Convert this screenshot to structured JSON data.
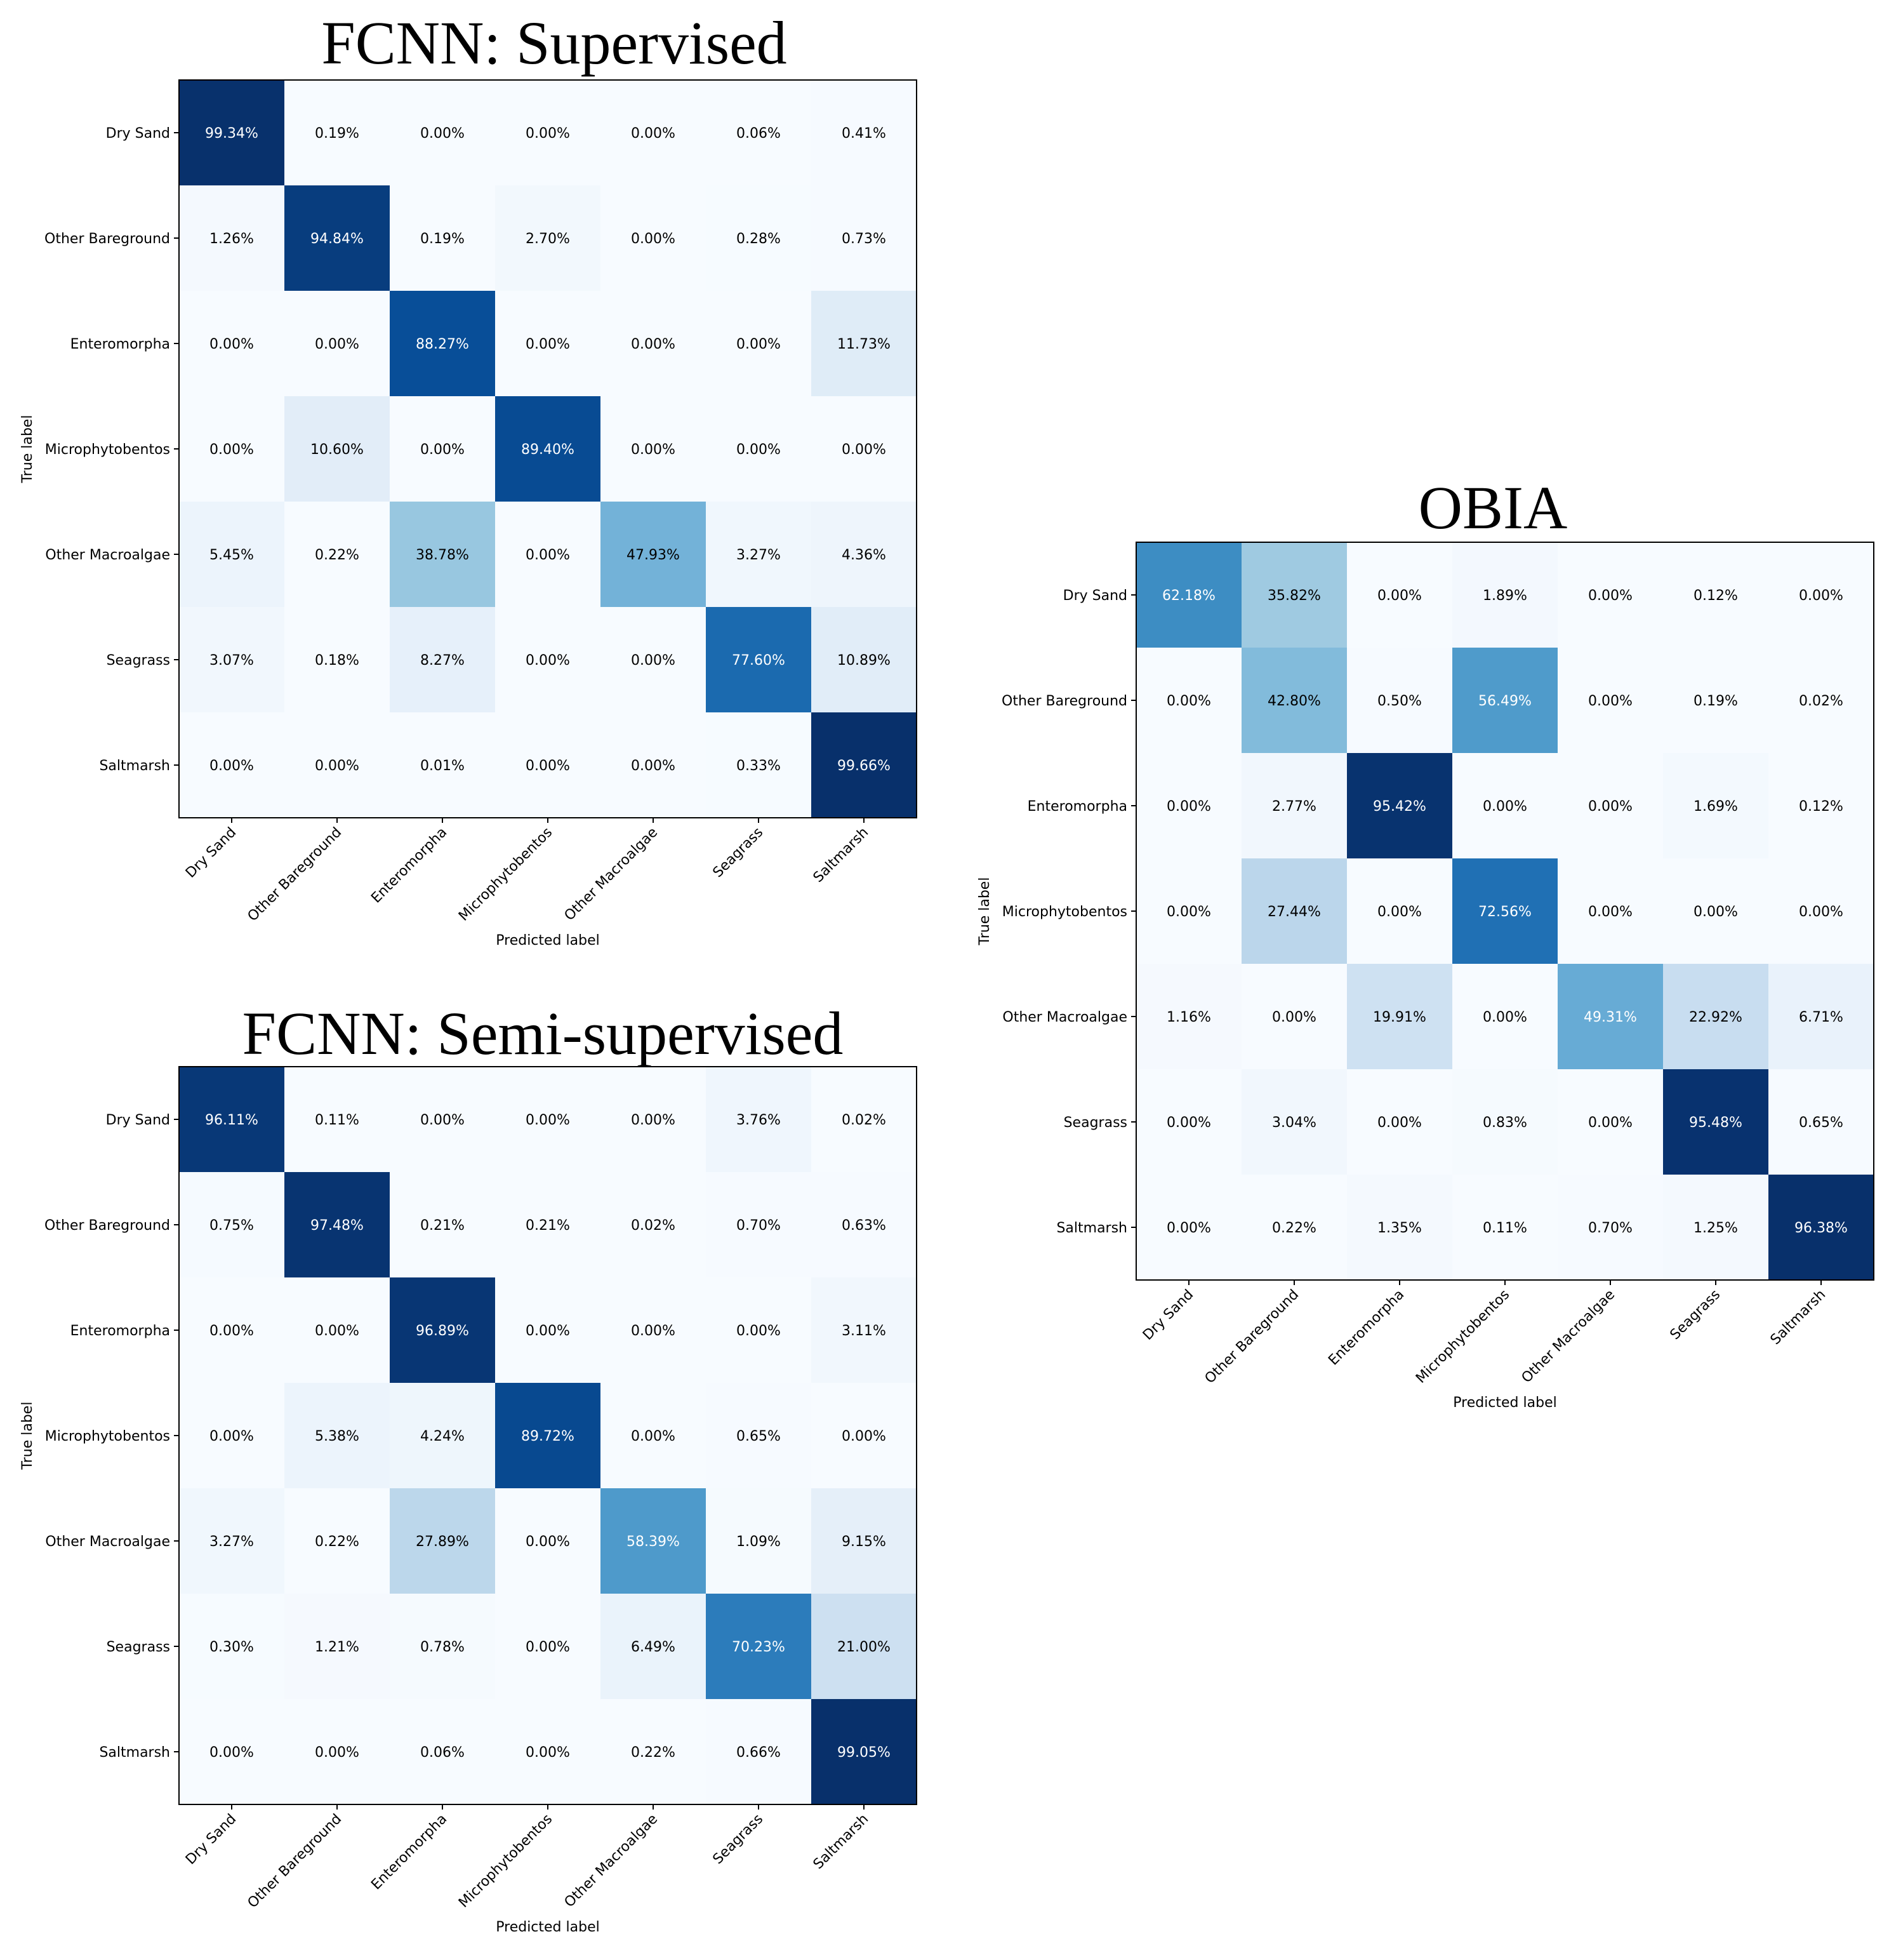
{
  "chart_data": [
    {
      "type": "heatmap",
      "title": "FCNN: Supervised",
      "xlabel": "Predicted label",
      "ylabel": "True label",
      "row_labels": [
        "Dry Sand",
        "Other Bareground",
        "Enteromorpha",
        "Microphytobentos",
        "Other Macroalgae",
        "Seagrass",
        "Saltmarsh"
      ],
      "col_labels": [
        "Dry Sand",
        "Other Bareground",
        "Enteromorpha",
        "Microphytobentos",
        "Other Macroalgae",
        "Seagrass",
        "Saltmarsh"
      ],
      "values": [
        [
          99.34,
          0.19,
          0.0,
          0.0,
          0.0,
          0.06,
          0.41
        ],
        [
          1.26,
          94.84,
          0.19,
          2.7,
          0.0,
          0.28,
          0.73
        ],
        [
          0.0,
          0.0,
          88.27,
          0.0,
          0.0,
          0.0,
          11.73
        ],
        [
          0.0,
          10.6,
          0.0,
          89.4,
          0.0,
          0.0,
          0.0
        ],
        [
          5.45,
          0.22,
          38.78,
          0.0,
          47.93,
          3.27,
          4.36
        ],
        [
          3.07,
          0.18,
          8.27,
          0.0,
          0.0,
          77.6,
          10.89
        ],
        [
          0.0,
          0.0,
          0.01,
          0.0,
          0.0,
          0.33,
          99.66
        ]
      ],
      "value_format": "percent_2dp",
      "colormap": "Blues"
    },
    {
      "type": "heatmap",
      "title": "FCNN: Semi-supervised",
      "xlabel": "Predicted label",
      "ylabel": "True label",
      "row_labels": [
        "Dry Sand",
        "Other Bareground",
        "Enteromorpha",
        "Microphytobentos",
        "Other Macroalgae",
        "Seagrass",
        "Saltmarsh"
      ],
      "col_labels": [
        "Dry Sand",
        "Other Bareground",
        "Enteromorpha",
        "Microphytobentos",
        "Other Macroalgae",
        "Seagrass",
        "Saltmarsh"
      ],
      "values": [
        [
          96.11,
          0.11,
          0.0,
          0.0,
          0.0,
          3.76,
          0.02
        ],
        [
          0.75,
          97.48,
          0.21,
          0.21,
          0.02,
          0.7,
          0.63
        ],
        [
          0.0,
          0.0,
          96.89,
          0.0,
          0.0,
          0.0,
          3.11
        ],
        [
          0.0,
          5.38,
          4.24,
          89.72,
          0.0,
          0.65,
          0.0
        ],
        [
          3.27,
          0.22,
          27.89,
          0.0,
          58.39,
          1.09,
          9.15
        ],
        [
          0.3,
          1.21,
          0.78,
          0.0,
          6.49,
          70.23,
          21.0
        ],
        [
          0.0,
          0.0,
          0.06,
          0.0,
          0.22,
          0.66,
          99.05
        ]
      ],
      "value_format": "percent_2dp",
      "colormap": "Blues"
    },
    {
      "type": "heatmap",
      "title": "OBIA",
      "xlabel": "Predicted label",
      "ylabel": "True label",
      "row_labels": [
        "Dry Sand",
        "Other Bareground",
        "Enteromorpha",
        "Microphytobentos",
        "Other Macroalgae",
        "Seagrass",
        "Saltmarsh"
      ],
      "col_labels": [
        "Dry Sand",
        "Other Bareground",
        "Enteromorpha",
        "Microphytobentos",
        "Other Macroalgae",
        "Seagrass",
        "Saltmarsh"
      ],
      "values": [
        [
          62.18,
          35.82,
          0.0,
          1.89,
          0.0,
          0.12,
          0.0
        ],
        [
          0.0,
          42.8,
          0.5,
          56.49,
          0.0,
          0.19,
          0.02
        ],
        [
          0.0,
          2.77,
          95.42,
          0.0,
          0.0,
          1.69,
          0.12
        ],
        [
          0.0,
          27.44,
          0.0,
          72.56,
          0.0,
          0.0,
          0.0
        ],
        [
          1.16,
          0.0,
          19.91,
          0.0,
          49.31,
          22.92,
          6.71
        ],
        [
          0.0,
          3.04,
          0.0,
          0.83,
          0.0,
          95.48,
          0.65
        ],
        [
          0.0,
          0.22,
          1.35,
          0.11,
          0.7,
          1.25,
          96.38
        ]
      ],
      "value_format": "percent_2dp",
      "colormap": "Blues"
    }
  ]
}
